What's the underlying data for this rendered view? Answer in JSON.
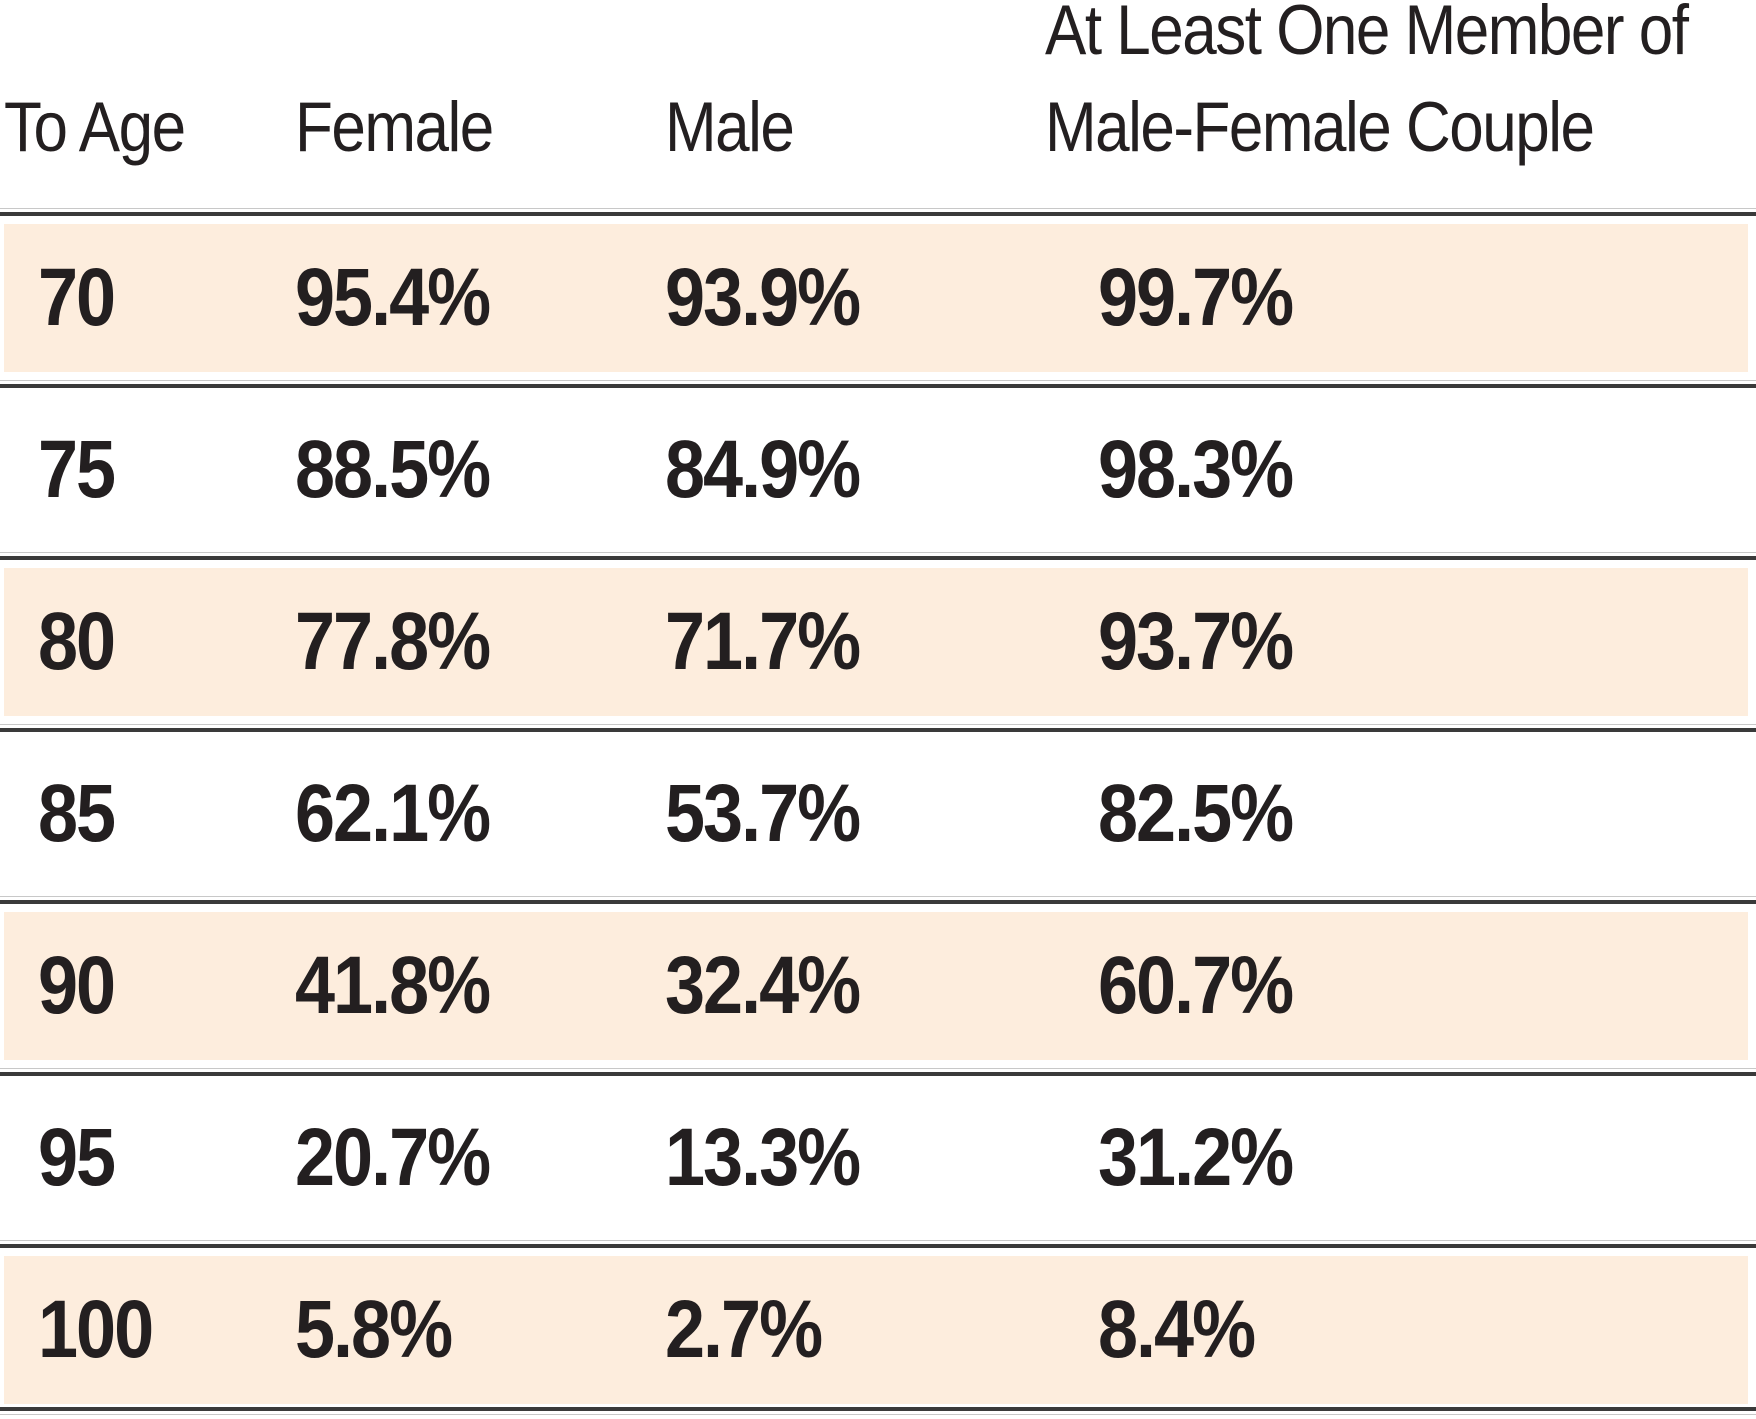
{
  "colors": {
    "row_shade": "#fdeddd",
    "rule_dark": "#3a3a3a",
    "rule_light": "#c8c8c8",
    "text": "#231f20",
    "background": "#ffffff"
  },
  "header_display": {
    "to_age": "To Age",
    "female": "Female",
    "male": "Male",
    "couple_line1": "At Least One Member of",
    "couple_line2": "Male-Female Couple"
  },
  "chart_data": {
    "type": "table",
    "columns": [
      "To Age",
      "Female",
      "Male",
      "At Least One Member of Male-Female Couple"
    ],
    "rows": [
      [
        "70",
        "95.4%",
        "93.9%",
        "99.7%"
      ],
      [
        "75",
        "88.5%",
        "84.9%",
        "98.3%"
      ],
      [
        "80",
        "77.8%",
        "71.7%",
        "93.7%"
      ],
      [
        "85",
        "62.1%",
        "53.7%",
        "82.5%"
      ],
      [
        "90",
        "41.8%",
        "32.4%",
        "60.7%"
      ],
      [
        "95",
        "20.7%",
        "13.3%",
        "31.2%"
      ],
      [
        "100",
        "5.8%",
        "2.7%",
        "8.4%"
      ]
    ],
    "shaded_row_indices": [
      0,
      2,
      4,
      6
    ],
    "layout_hints": {
      "grid": "horizontal rules between rows (hairline + heavy rule)",
      "alternating_row_shading": true,
      "values_alignment": "left"
    }
  }
}
